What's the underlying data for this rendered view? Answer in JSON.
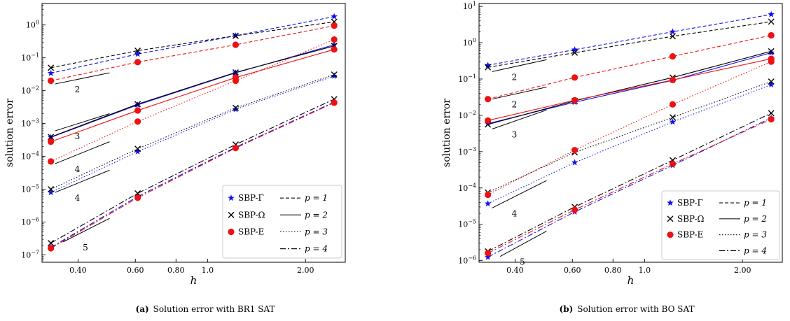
{
  "chart_data": [
    {
      "type": "line",
      "caption_tag": "(a)",
      "caption": "Solution error with BR1 SAT",
      "xlabel": "h",
      "ylabel": "solution error",
      "xscale": "log",
      "yscale": "log",
      "xlim": [
        0.31,
        2.65
      ],
      "ylim": [
        6e-08,
        4.5
      ],
      "xticks": [
        {
          "v": 0.4,
          "label": "0.40"
        },
        {
          "v": 0.6,
          "label": "0.60"
        },
        {
          "v": 0.8,
          "label": "0.80"
        },
        {
          "v": 1.0,
          "label": "1.0"
        },
        {
          "v": 2.0,
          "label": "2.00"
        }
      ],
      "yticks": [
        {
          "v": 1e-07,
          "base": "10",
          "exp": "−7"
        },
        {
          "v": 1e-06,
          "base": "10",
          "exp": "−6"
        },
        {
          "v": 1e-05,
          "base": "10",
          "exp": "−5"
        },
        {
          "v": 0.0001,
          "base": "10",
          "exp": "−4"
        },
        {
          "v": 0.001,
          "base": "10",
          "exp": "−3"
        },
        {
          "v": 0.01,
          "base": "10",
          "exp": "−2"
        },
        {
          "v": 0.1,
          "base": "10",
          "exp": "−1"
        },
        {
          "v": 1,
          "base": "10",
          "exp": "0"
        }
      ],
      "legend_position": "bottom-right",
      "series": [
        {
          "operator": "SBP-Γ",
          "p": 1,
          "color": "#1010ee",
          "x": [
            0.33,
            0.61,
            1.22,
            2.45
          ],
          "y": [
            0.034,
            0.13,
            0.47,
            1.8
          ]
        },
        {
          "operator": "SBP-Ω",
          "p": 1,
          "color": "#000000",
          "x": [
            0.33,
            0.61,
            1.22,
            2.45
          ],
          "y": [
            0.05,
            0.165,
            0.47,
            1.25
          ]
        },
        {
          "operator": "SBP-E",
          "p": 1,
          "color": "#ee1111",
          "x": [
            0.33,
            0.61,
            1.22,
            2.45
          ],
          "y": [
            0.02,
            0.074,
            0.25,
            0.95
          ]
        },
        {
          "operator": "SBP-Γ",
          "p": 2,
          "color": "#1010ee",
          "x": [
            0.33,
            0.61,
            1.22,
            2.45
          ],
          "y": [
            0.00038,
            0.0037,
            0.035,
            0.25
          ]
        },
        {
          "operator": "SBP-Ω",
          "p": 2,
          "color": "#000000",
          "x": [
            0.33,
            0.61,
            1.22,
            2.45
          ],
          "y": [
            0.00039,
            0.0039,
            0.036,
            0.23
          ]
        },
        {
          "operator": "SBP-E",
          "p": 2,
          "color": "#ee1111",
          "x": [
            0.33,
            0.61,
            1.22,
            2.45
          ],
          "y": [
            0.00028,
            0.0025,
            0.025,
            0.18
          ]
        },
        {
          "operator": "SBP-Γ",
          "p": 3,
          "color": "#1010ee",
          "x": [
            0.33,
            0.61,
            1.22,
            2.45
          ],
          "y": [
            8e-06,
            0.00014,
            0.0027,
            0.028
          ]
        },
        {
          "operator": "SBP-Ω",
          "p": 3,
          "color": "#000000",
          "x": [
            0.33,
            0.61,
            1.22,
            2.45
          ],
          "y": [
            1e-05,
            0.00017,
            0.003,
            0.031
          ]
        },
        {
          "operator": "SBP-E",
          "p": 3,
          "color": "#ee1111",
          "x": [
            0.33,
            0.61,
            1.22,
            2.45
          ],
          "y": [
            7e-05,
            0.00115,
            0.02,
            0.36
          ]
        },
        {
          "operator": "SBP-Γ",
          "p": 4,
          "color": "#1010ee",
          "x": [
            0.33,
            0.61,
            1.22,
            2.45
          ],
          "y": [
            1.7e-07,
            6e-06,
            0.00019,
            0.0045
          ]
        },
        {
          "operator": "SBP-Ω",
          "p": 4,
          "color": "#000000",
          "x": [
            0.33,
            0.61,
            1.22,
            2.45
          ],
          "y": [
            2.3e-07,
            7.5e-06,
            0.00023,
            0.0055
          ]
        },
        {
          "operator": "SBP-E",
          "p": 4,
          "color": "#ee1111",
          "x": [
            0.33,
            0.61,
            1.22,
            2.45
          ],
          "y": [
            1.6e-07,
            5.5e-06,
            0.00018,
            0.0043
          ]
        }
      ],
      "slope_triangles": [
        {
          "label": "2",
          "x": [
            0.34,
            0.5
          ],
          "y": [
            0.016,
            0.035
          ]
        },
        {
          "label": "3",
          "x": [
            0.34,
            0.5
          ],
          "y": [
            0.0006,
            0.002
          ]
        },
        {
          "label": "4",
          "x": [
            0.34,
            0.5
          ],
          "y": [
            6e-05,
            0.00028
          ]
        },
        {
          "label": "4",
          "x": [
            0.34,
            0.5
          ],
          "y": [
            8e-06,
            3.8e-05
          ]
        },
        {
          "label": "5",
          "x": [
            0.36,
            0.5
          ],
          "y": [
            2.5e-07,
            1.3e-06
          ]
        }
      ]
    },
    {
      "type": "line",
      "caption_tag": "(b)",
      "caption": "Solution error with BO SAT",
      "xlabel": "h",
      "ylabel": "solution error",
      "xscale": "log",
      "yscale": "log",
      "xlim": [
        0.31,
        2.65
      ],
      "ylim": [
        9e-07,
        12
      ],
      "xticks": [
        {
          "v": 0.4,
          "label": "0.40"
        },
        {
          "v": 0.6,
          "label": "0.60"
        },
        {
          "v": 0.8,
          "label": "0.80"
        },
        {
          "v": 1.0,
          "label": "1.0"
        },
        {
          "v": 2.0,
          "label": "2.00"
        }
      ],
      "yticks": [
        {
          "v": 1e-06,
          "base": "10",
          "exp": "−6"
        },
        {
          "v": 1e-05,
          "base": "10",
          "exp": "−5"
        },
        {
          "v": 0.0001,
          "base": "10",
          "exp": "−4"
        },
        {
          "v": 0.001,
          "base": "10",
          "exp": "−3"
        },
        {
          "v": 0.01,
          "base": "10",
          "exp": "−2"
        },
        {
          "v": 0.1,
          "base": "10",
          "exp": "−1"
        },
        {
          "v": 1,
          "base": "10",
          "exp": "0"
        },
        {
          "v": 10,
          "base": "10",
          "exp": "1"
        }
      ],
      "legend_position": "bottom-right",
      "series": [
        {
          "operator": "SBP-Γ",
          "p": 1,
          "color": "#1010ee",
          "x": [
            0.33,
            0.61,
            1.22,
            2.45
          ],
          "y": [
            0.24,
            0.64,
            2.0,
            6.0
          ]
        },
        {
          "operator": "SBP-Ω",
          "p": 1,
          "color": "#000000",
          "x": [
            0.33,
            0.61,
            1.22,
            2.45
          ],
          "y": [
            0.21,
            0.53,
            1.5,
            3.8
          ]
        },
        {
          "operator": "SBP-E",
          "p": 1,
          "color": "#ee1111",
          "x": [
            0.33,
            0.61,
            1.22,
            2.45
          ],
          "y": [
            0.028,
            0.11,
            0.42,
            1.6
          ]
        },
        {
          "operator": "SBP-Γ",
          "p": 2,
          "color": "#1010ee",
          "x": [
            0.33,
            0.61,
            1.22,
            2.45
          ],
          "y": [
            0.0059,
            0.023,
            0.092,
            0.53
          ]
        },
        {
          "operator": "SBP-Ω",
          "p": 2,
          "color": "#000000",
          "x": [
            0.33,
            0.61,
            1.22,
            2.45
          ],
          "y": [
            0.0056,
            0.025,
            0.11,
            0.58
          ]
        },
        {
          "operator": "SBP-E",
          "p": 2,
          "color": "#ee1111",
          "x": [
            0.33,
            0.61,
            1.22,
            2.45
          ],
          "y": [
            0.0072,
            0.026,
            0.094,
            0.36
          ]
        },
        {
          "operator": "SBP-Γ",
          "p": 3,
          "color": "#1010ee",
          "x": [
            0.33,
            0.61,
            1.22,
            2.45
          ],
          "y": [
            3.7e-05,
            0.0005,
            0.0066,
            0.07
          ]
        },
        {
          "operator": "SBP-Ω",
          "p": 3,
          "color": "#000000",
          "x": [
            0.33,
            0.61,
            1.22,
            2.45
          ],
          "y": [
            7.5e-05,
            0.00095,
            0.0088,
            0.085
          ]
        },
        {
          "operator": "SBP-E",
          "p": 3,
          "color": "#ee1111",
          "x": [
            0.33,
            0.61,
            1.22,
            2.45
          ],
          "y": [
            6.5e-05,
            0.0011,
            0.02,
            0.3
          ]
        },
        {
          "operator": "SBP-Γ",
          "p": 4,
          "color": "#1010ee",
          "x": [
            0.33,
            0.61,
            1.22,
            2.45
          ],
          "y": [
            1.25e-06,
            2.2e-05,
            0.00042,
            0.0085
          ]
        },
        {
          "operator": "SBP-Ω",
          "p": 4,
          "color": "#000000",
          "x": [
            0.33,
            0.61,
            1.22,
            2.45
          ],
          "y": [
            1.8e-06,
            3e-05,
            0.00058,
            0.0115
          ]
        },
        {
          "operator": "SBP-E",
          "p": 4,
          "color": "#ee1111",
          "x": [
            0.33,
            0.61,
            1.22,
            2.45
          ],
          "y": [
            1.6e-06,
            2.5e-05,
            0.00046,
            0.0078
          ]
        }
      ],
      "slope_triangles": [
        {
          "label": "2",
          "x": [
            0.34,
            0.5
          ],
          "y": [
            0.16,
            0.34
          ]
        },
        {
          "label": "2",
          "x": [
            0.34,
            0.5
          ],
          "y": [
            0.028,
            0.06
          ]
        },
        {
          "label": "3",
          "x": [
            0.34,
            0.5
          ],
          "y": [
            0.0042,
            0.014
          ]
        },
        {
          "label": "4",
          "x": [
            0.34,
            0.5
          ],
          "y": [
            2.8e-05,
            0.00016
          ]
        },
        {
          "label": "5",
          "x": [
            0.36,
            0.5
          ],
          "y": [
            1.3e-06,
            6.5e-06
          ]
        }
      ]
    }
  ],
  "legend": {
    "markers": [
      {
        "label": "SBP-Γ",
        "symbol": "star",
        "color": "#1010ee"
      },
      {
        "label": "SBP-Ω",
        "symbol": "cross",
        "color": "#000000"
      },
      {
        "label": "SBP-E",
        "symbol": "circle",
        "color": "#ee1111"
      }
    ],
    "lines": [
      {
        "label": "p = 1",
        "dash": "5,3"
      },
      {
        "label": "p = 2",
        "dash": ""
      },
      {
        "label": "p = 3",
        "dash": "1.5,2.5"
      },
      {
        "label": "p = 4",
        "dash": "8,3,2,3"
      }
    ]
  },
  "line_styles": {
    "1": "5,3",
    "2": "",
    "3": "1.5,2.5",
    "4": "8,3,2,3"
  }
}
